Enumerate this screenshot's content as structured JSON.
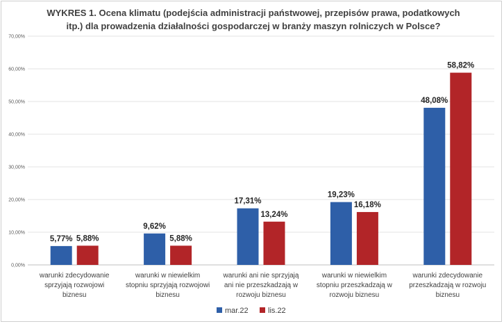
{
  "chart_data": {
    "type": "bar",
    "title_line1": "WYKRES 1. Ocena klimatu (podejścia administracji państwowej, przepisów prawa, podatkowych",
    "title_line2": "itp.) dla prowadzenia działalności gospodarczej w branży maszyn rolniczych w Polsce?",
    "categories": [
      [
        "warunki zdecydowanie",
        "sprzyjają rozwojowi",
        "biznesu"
      ],
      [
        "warunki w niewielkim",
        "stopniu sprzyjają rozwojowi",
        "biznesu"
      ],
      [
        "warunki ani nie sprzyjają",
        "ani nie przeszkadzają w",
        "rozwoju biznesu"
      ],
      [
        "warunki w niewielkim",
        "stopniu przeszkadzają w",
        "rozwoju biznesu"
      ],
      [
        "warunki zdecydowanie",
        "przeszkadzają w rozwoju",
        "biznesu"
      ]
    ],
    "series": [
      {
        "name": "mar.22",
        "color": "#2e5fa8",
        "values": [
          5.77,
          9.62,
          17.31,
          19.23,
          48.08
        ],
        "labels": [
          "5,77%",
          "9,62%",
          "17,31%",
          "19,23%",
          "48,08%"
        ]
      },
      {
        "name": "lis.22",
        "color": "#b22528",
        "values": [
          5.88,
          5.88,
          13.24,
          16.18,
          58.82
        ],
        "labels": [
          "5,88%",
          "5,88%",
          "13,24%",
          "16,18%",
          "58,82%"
        ]
      }
    ],
    "yticks": [
      "0,00%",
      "10,00%",
      "20,00%",
      "30,00%",
      "40,00%",
      "50,00%",
      "60,00%",
      "70,00%"
    ],
    "ylim": [
      0,
      70
    ],
    "grid": true,
    "legend_position": "bottom"
  }
}
